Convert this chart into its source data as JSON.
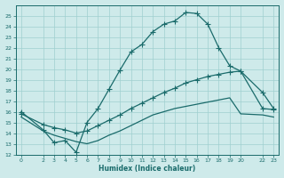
{
  "xlabel": "Humidex (Indice chaleur)",
  "bg_color": "#ceeaea",
  "grid_color": "#9fcfcf",
  "line_color": "#1a6b6b",
  "xlim": [
    -0.5,
    23.5
  ],
  "ylim": [
    12,
    26
  ],
  "xticks": [
    0,
    2,
    3,
    4,
    5,
    6,
    7,
    8,
    9,
    10,
    11,
    12,
    13,
    14,
    15,
    16,
    17,
    18,
    19,
    20,
    22,
    23
  ],
  "yticks": [
    12,
    13,
    14,
    15,
    16,
    17,
    18,
    19,
    20,
    21,
    22,
    23,
    24,
    25
  ],
  "line1_x": [
    0,
    2,
    3,
    4,
    5,
    6,
    7,
    8,
    9,
    10,
    11,
    12,
    13,
    14,
    15,
    16,
    17,
    18,
    19,
    20,
    22,
    23
  ],
  "line1_y": [
    16.0,
    14.3,
    13.1,
    13.3,
    12.2,
    15.0,
    16.3,
    18.1,
    19.9,
    21.6,
    22.3,
    23.5,
    24.2,
    24.5,
    25.3,
    25.2,
    24.2,
    22.0,
    20.3,
    19.8,
    17.8,
    16.3
  ],
  "line2_x": [
    0,
    2,
    3,
    4,
    5,
    6,
    7,
    8,
    9,
    10,
    11,
    12,
    13,
    14,
    15,
    16,
    17,
    18,
    19,
    20,
    22,
    23
  ],
  "line2_y": [
    15.8,
    14.8,
    14.5,
    14.3,
    14.0,
    14.2,
    14.7,
    15.2,
    15.7,
    16.3,
    16.8,
    17.3,
    17.8,
    18.2,
    18.7,
    19.0,
    19.3,
    19.5,
    19.7,
    19.8,
    16.3,
    16.2
  ],
  "line3_x": [
    0,
    2,
    3,
    5,
    6,
    7,
    8,
    9,
    10,
    11,
    12,
    13,
    14,
    15,
    16,
    17,
    18,
    19,
    20,
    22,
    23
  ],
  "line3_y": [
    15.5,
    14.2,
    13.8,
    13.2,
    13.0,
    13.3,
    13.8,
    14.2,
    14.7,
    15.2,
    15.7,
    16.0,
    16.3,
    16.5,
    16.7,
    16.9,
    17.1,
    17.3,
    15.8,
    15.7,
    15.5
  ]
}
